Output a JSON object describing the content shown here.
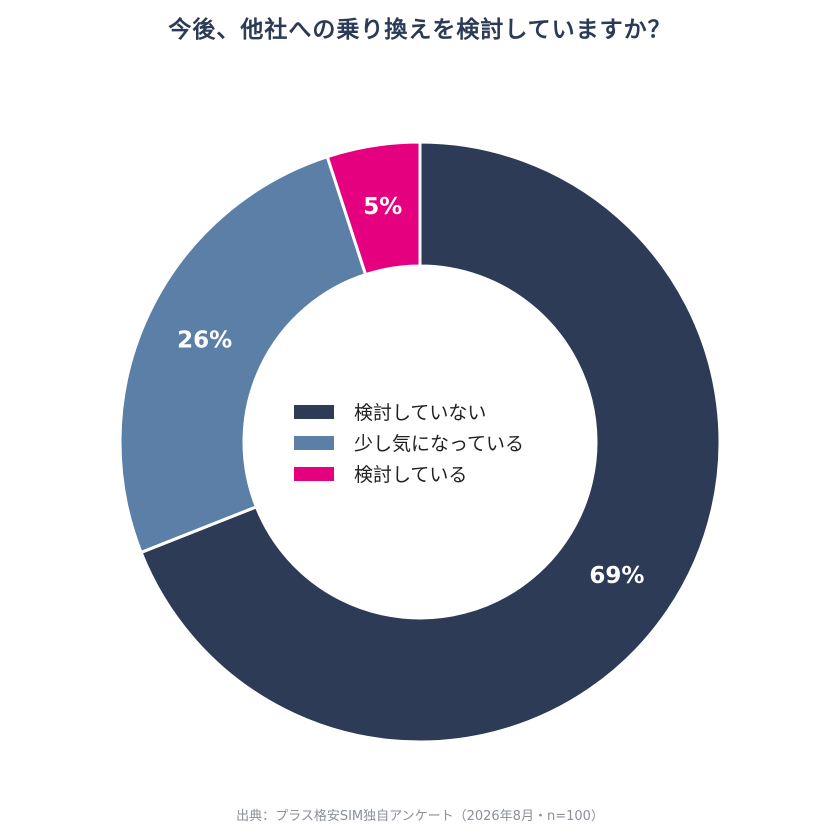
{
  "title": "今後、他社への乗り換えを検討していますか？",
  "source": "出典：プラス格安SIM独自アンケート（2026年8月・n=100）",
  "chart_data": {
    "type": "pie",
    "subtype": "donut",
    "title": "今後、他社への乗り換えを検討していますか？",
    "slices": [
      {
        "label": "検討していない",
        "value": 69,
        "display": "69%",
        "color": "#2d3b56"
      },
      {
        "label": "少し気になっている",
        "value": 26,
        "display": "26%",
        "color": "#5b7fa6"
      },
      {
        "label": "検討している",
        "value": 5,
        "display": "5%",
        "color": "#e4007f"
      }
    ],
    "legend_position": "center"
  }
}
